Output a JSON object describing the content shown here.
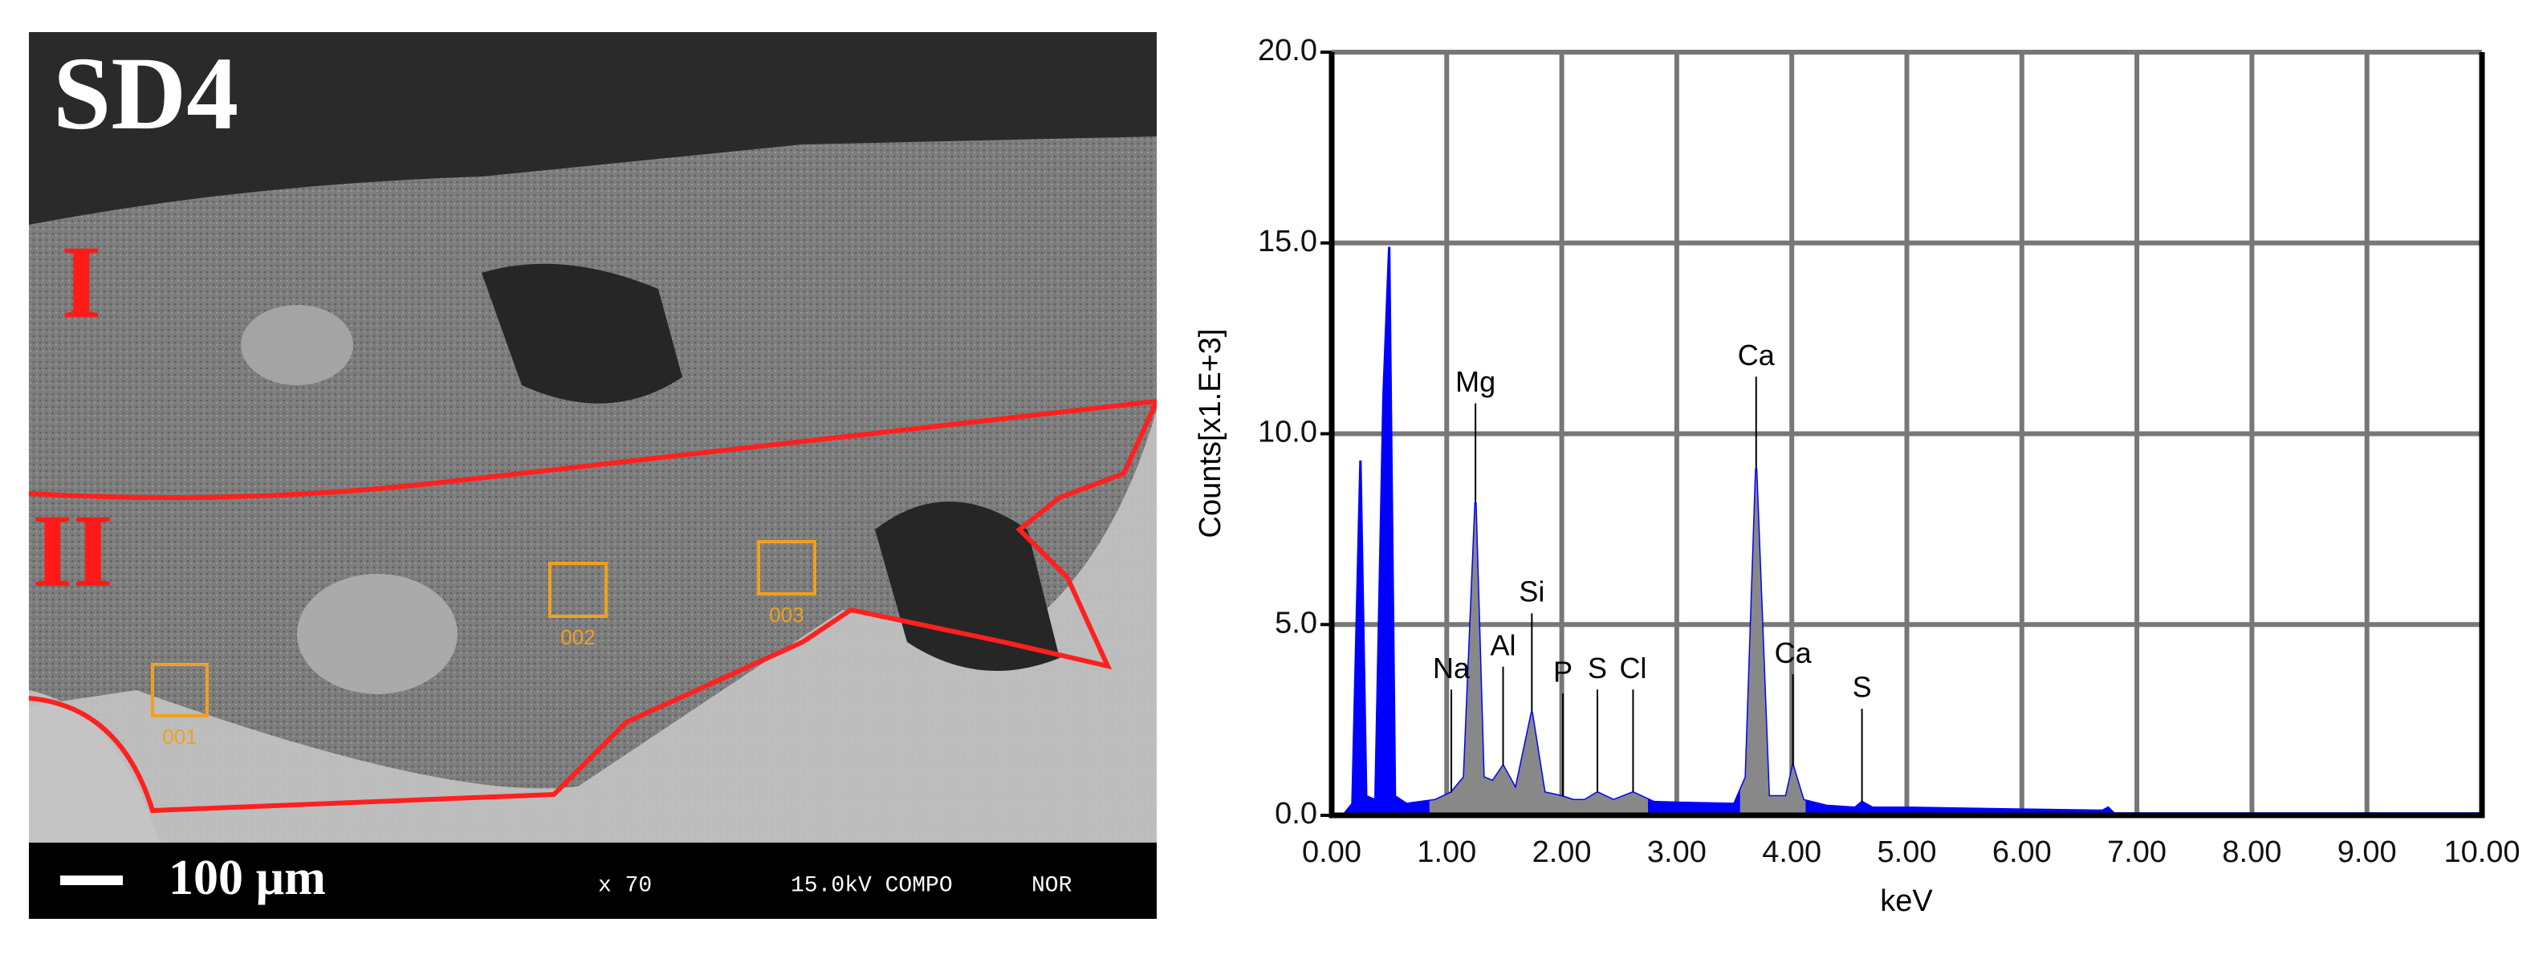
{
  "image": {
    "sample": "SD4",
    "zones": [
      "I",
      "II"
    ],
    "boxes": [
      "001",
      "002",
      "003"
    ],
    "scale_bar": "100 µm",
    "magnification": "x 70",
    "voltage_mode": "15.0kV COMPO",
    "mode": "NOR"
  },
  "chart_data": {
    "type": "area",
    "xlabel": "keV",
    "ylabel": "Counts[x1.E+3]",
    "xlim": [
      0,
      10
    ],
    "ylim": [
      0,
      20
    ],
    "xticks": [
      {
        "value": 0,
        "label": "0.00"
      },
      {
        "value": 1,
        "label": "1.00"
      },
      {
        "value": 2,
        "label": "2.00"
      },
      {
        "value": 3,
        "label": "3.00"
      },
      {
        "value": 4,
        "label": "4.00"
      },
      {
        "value": 5,
        "label": "5.00"
      },
      {
        "value": 6,
        "label": "6.00"
      },
      {
        "value": 7,
        "label": "7.00"
      },
      {
        "value": 8,
        "label": "8.00"
      },
      {
        "value": 9,
        "label": "9.00"
      },
      {
        "value": 10,
        "label": "10.00"
      }
    ],
    "yticks": [
      {
        "value": 0,
        "label": "0.0"
      },
      {
        "value": 5,
        "label": "5.0"
      },
      {
        "value": 10,
        "label": "10.0"
      },
      {
        "value": 15,
        "label": "15.0"
      },
      {
        "value": 20,
        "label": "20.0"
      }
    ],
    "grid": true,
    "series": [
      {
        "color": "#0000ff",
        "x": [
          0,
          0.1,
          0.18,
          0.25,
          0.3,
          0.38,
          0.45,
          0.5,
          0.55,
          0.65,
          0.9,
          1.04,
          1.15,
          1.25,
          1.32,
          1.4,
          1.49,
          1.6,
          1.74,
          1.85,
          2.0,
          2.1,
          2.2,
          2.31,
          2.45,
          2.62,
          2.8,
          3.0,
          3.5,
          3.6,
          3.69,
          3.8,
          3.95,
          4.01,
          4.1,
          4.3,
          4.55,
          4.61,
          4.7,
          5.0,
          6.0,
          6.7,
          6.75,
          6.8,
          7.0,
          10.0
        ],
        "values": [
          0,
          0,
          0.3,
          9.3,
          0.5,
          0.4,
          11,
          14.9,
          0.5,
          0.3,
          0.4,
          0.6,
          1.0,
          8.2,
          1.0,
          0.9,
          1.3,
          0.7,
          2.7,
          0.6,
          0.5,
          0.4,
          0.4,
          0.6,
          0.4,
          0.6,
          0.35,
          0.33,
          0.3,
          1.0,
          9.1,
          0.5,
          0.5,
          1.3,
          0.4,
          0.25,
          0.2,
          0.35,
          0.2,
          0.2,
          0.15,
          0.12,
          0.2,
          0.05,
          0.05,
          0.05
        ]
      }
    ],
    "shaded_ranges": [
      [
        0.85,
        2.75
      ],
      [
        3.55,
        4.12
      ]
    ],
    "shaded_color": "#888888",
    "peaks": [
      {
        "label": "Na",
        "x": 1.04,
        "y": 3.8
      },
      {
        "label": "Mg",
        "x": 1.25,
        "y": 11.3
      },
      {
        "label": "Al",
        "x": 1.49,
        "y": 4.4
      },
      {
        "label": "Si",
        "x": 1.74,
        "y": 5.8
      },
      {
        "label": "P",
        "x": 2.01,
        "y": 3.7
      },
      {
        "label": "S",
        "x": 2.31,
        "y": 3.8
      },
      {
        "label": "Cl",
        "x": 2.62,
        "y": 3.8
      },
      {
        "label": "Ca",
        "x": 3.69,
        "y": 12.0
      },
      {
        "label": "Ca",
        "x": 4.01,
        "y": 4.2
      },
      {
        "label": "S",
        "x": 4.61,
        "y": 3.3
      }
    ]
  }
}
